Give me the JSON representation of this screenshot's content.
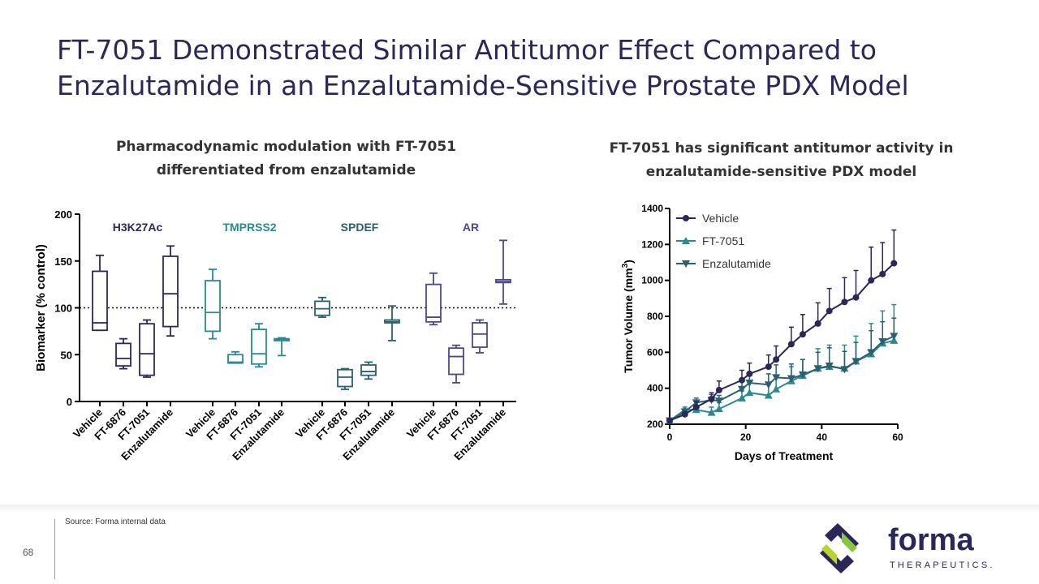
{
  "slide": {
    "title": "FT-7051 Demonstrated Similar Antitumor Effect Compared to Enzalutamide in an Enzalutamide-Sensitive Prostate PDX Model",
    "left_subtitle": "Pharmacodynamic modulation with FT-7051 differentiated from enzalutamide",
    "right_subtitle": "FT-7051 has significant antitumor activity in enzalutamide-sensitive PDX model",
    "source": "Source: Forma internal data",
    "page_number": "68",
    "logo_word": "forma",
    "logo_sub": "THERAPEUTICS."
  },
  "colors": {
    "title": "#2b2859",
    "navy": "#2b2859",
    "teal": "#2a8a8e",
    "slate": "#2a6070",
    "green": "#8cc63f",
    "lime": "#b8d433"
  },
  "chart_data": [
    {
      "type": "box",
      "title": "",
      "ylabel": "Biomarker (% control)",
      "ylim": [
        0,
        200
      ],
      "yticks": [
        0,
        50,
        100,
        150,
        200
      ],
      "reference_line": 100,
      "groups": [
        {
          "name": "H3K27Ac",
          "color": "#2b2859",
          "boxes": [
            {
              "label": "Vehicle",
              "min": 76,
              "q1": 76,
              "median": 84,
              "q3": 139,
              "max": 156
            },
            {
              "label": "FT-6876",
              "min": 35,
              "q1": 38,
              "median": 46,
              "q3": 62,
              "max": 67
            },
            {
              "label": "FT-7051",
              "min": 26,
              "q1": 28,
              "median": 51,
              "q3": 83,
              "max": 87
            },
            {
              "label": "Enzalutamide",
              "min": 70,
              "q1": 80,
              "median": 115,
              "q3": 155,
              "max": 166
            }
          ]
        },
        {
          "name": "TMPRSS2",
          "color": "#2a8a8e",
          "boxes": [
            {
              "label": "Vehicle",
              "min": 67,
              "q1": 75,
              "median": 95,
              "q3": 129,
              "max": 141
            },
            {
              "label": "FT-6876",
              "min": 41,
              "q1": 41,
              "median": 42,
              "q3": 50,
              "max": 53
            },
            {
              "label": "FT-7051",
              "min": 37,
              "q1": 40,
              "median": 51,
              "q3": 77,
              "max": 83
            },
            {
              "label": "Enzalutamide",
              "min": 49,
              "q1": 65,
              "median": 66,
              "q3": 67,
              "max": 68
            }
          ]
        },
        {
          "name": "SPDEF",
          "color": "#2a6070",
          "boxes": [
            {
              "label": "Vehicle",
              "min": 90,
              "q1": 92,
              "median": 99,
              "q3": 107,
              "max": 111
            },
            {
              "label": "FT-6876",
              "min": 13,
              "q1": 16,
              "median": 26,
              "q3": 34,
              "max": 35
            },
            {
              "label": "FT-7051",
              "min": 24,
              "q1": 28,
              "median": 32,
              "q3": 39,
              "max": 42
            },
            {
              "label": "Enzalutamide",
              "min": 65,
              "q1": 84,
              "median": 85,
              "q3": 87,
              "max": 102
            }
          ]
        },
        {
          "name": "AR",
          "color": "#4a4a8a",
          "boxes": [
            {
              "label": "Vehicle",
              "min": 82,
              "q1": 85,
              "median": 90,
              "q3": 125,
              "max": 137
            },
            {
              "label": "FT-6876",
              "min": 20,
              "q1": 29,
              "median": 48,
              "q3": 57,
              "max": 60
            },
            {
              "label": "FT-7051",
              "min": 52,
              "q1": 58,
              "median": 72,
              "q3": 84,
              "max": 87
            },
            {
              "label": "Enzalutamide",
              "min": 104,
              "q1": 127,
              "median": 128,
              "q3": 130,
              "max": 172
            }
          ]
        }
      ]
    },
    {
      "type": "line",
      "xlabel": "Days of Treatment",
      "ylabel": "Tumor Volume (mm",
      "ylabel_sup": "3",
      "ylabel_end": ")",
      "xlim": [
        0,
        60
      ],
      "ylim": [
        200,
        1400
      ],
      "xticks": [
        0,
        20,
        40,
        60
      ],
      "yticks": [
        200,
        400,
        600,
        800,
        1000,
        1200,
        1400
      ],
      "legend_position": "top-left",
      "series": [
        {
          "name": "Vehicle",
          "color": "#2b2859",
          "marker": "circle",
          "x": [
            0,
            4,
            7,
            11,
            13,
            19,
            21,
            26,
            28,
            32,
            35,
            39,
            42,
            46,
            49,
            53,
            56,
            59
          ],
          "y": [
            220,
            255,
            295,
            340,
            390,
            445,
            480,
            520,
            560,
            645,
            700,
            760,
            830,
            880,
            905,
            1000,
            1035,
            1095
          ],
          "err": [
            0,
            15,
            30,
            35,
            50,
            55,
            60,
            65,
            75,
            95,
            110,
            115,
            125,
            135,
            150,
            185,
            175,
            185
          ]
        },
        {
          "name": "FT-7051",
          "color": "#2a8a8e",
          "marker": "triangle-up",
          "x": [
            0,
            4,
            7,
            11,
            13,
            19,
            21,
            26,
            28,
            32,
            35,
            39,
            42,
            46,
            49,
            53,
            56,
            59
          ],
          "y": [
            220,
            280,
            280,
            265,
            285,
            345,
            375,
            360,
            395,
            440,
            470,
            510,
            520,
            510,
            550,
            590,
            650,
            665
          ],
          "err": [
            0,
            15,
            25,
            30,
            35,
            40,
            55,
            70,
            70,
            80,
            90,
            110,
            120,
            130,
            140,
            170,
            180,
            200
          ]
        },
        {
          "name": "Enzalutamide",
          "color": "#2a6070",
          "marker": "triangle-down",
          "x": [
            0,
            4,
            7,
            11,
            13,
            19,
            21,
            26,
            28,
            32,
            35,
            39,
            42,
            46,
            49,
            53,
            56,
            59
          ],
          "y": [
            220,
            270,
            320,
            335,
            330,
            395,
            430,
            420,
            460,
            455,
            475,
            510,
            525,
            505,
            550,
            600,
            660,
            690
          ],
          "err": [
            0,
            15,
            25,
            30,
            30,
            50,
            55,
            60,
            70,
            80,
            85,
            90,
            100,
            100,
            105,
            120,
            110,
            100
          ]
        }
      ]
    }
  ]
}
